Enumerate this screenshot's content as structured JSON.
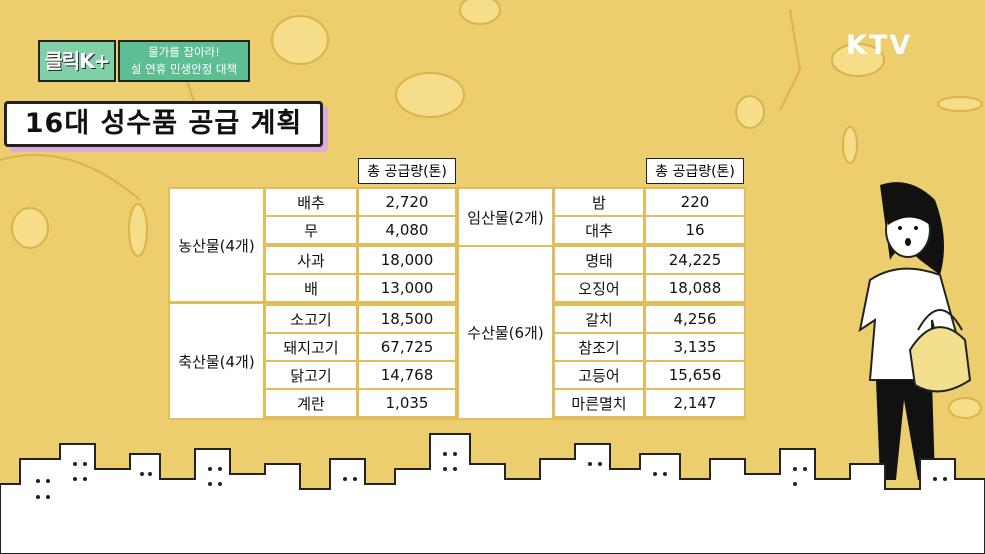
{
  "badge": {
    "logo": "클릭K+",
    "line1": "물가를 잡아라!",
    "line2": "설 연휴 민생안정 대책"
  },
  "channel": "KTV",
  "title": "16대 성수품 공급 계획",
  "table": {
    "header_left": "총 공급량(톤)",
    "header_right": "총 공급량(톤)",
    "left_groups": [
      {
        "name": "농산물(4개)",
        "items": [
          {
            "item": "배추",
            "qty": "2,720"
          },
          {
            "item": "무",
            "qty": "4,080"
          },
          {
            "item": "사과",
            "qty": "18,000"
          },
          {
            "item": "배",
            "qty": "13,000"
          }
        ]
      },
      {
        "name": "축산물(4개)",
        "items": [
          {
            "item": "소고기",
            "qty": "18,500"
          },
          {
            "item": "돼지고기",
            "qty": "67,725"
          },
          {
            "item": "닭고기",
            "qty": "14,768"
          },
          {
            "item": "계란",
            "qty": "1,035"
          }
        ]
      }
    ],
    "right_groups": [
      {
        "name": "임산물(2개)",
        "items": [
          {
            "item": "밤",
            "qty": "220"
          },
          {
            "item": "대추",
            "qty": "16"
          }
        ]
      },
      {
        "name": "수산물(6개)",
        "items": [
          {
            "item": "명태",
            "qty": "24,225"
          },
          {
            "item": "오징어",
            "qty": "18,088"
          },
          {
            "item": "갈치",
            "qty": "4,256"
          },
          {
            "item": "참조기",
            "qty": "3,135"
          },
          {
            "item": "고등어",
            "qty": "15,656"
          },
          {
            "item": "마른멸치",
            "qty": "2,147"
          }
        ]
      }
    ]
  },
  "colors": {
    "background": "#EDCE6E",
    "grid": "#E2BE5A",
    "title_shadow": "#E0A9D6",
    "badge_green": "#5DBE94"
  }
}
